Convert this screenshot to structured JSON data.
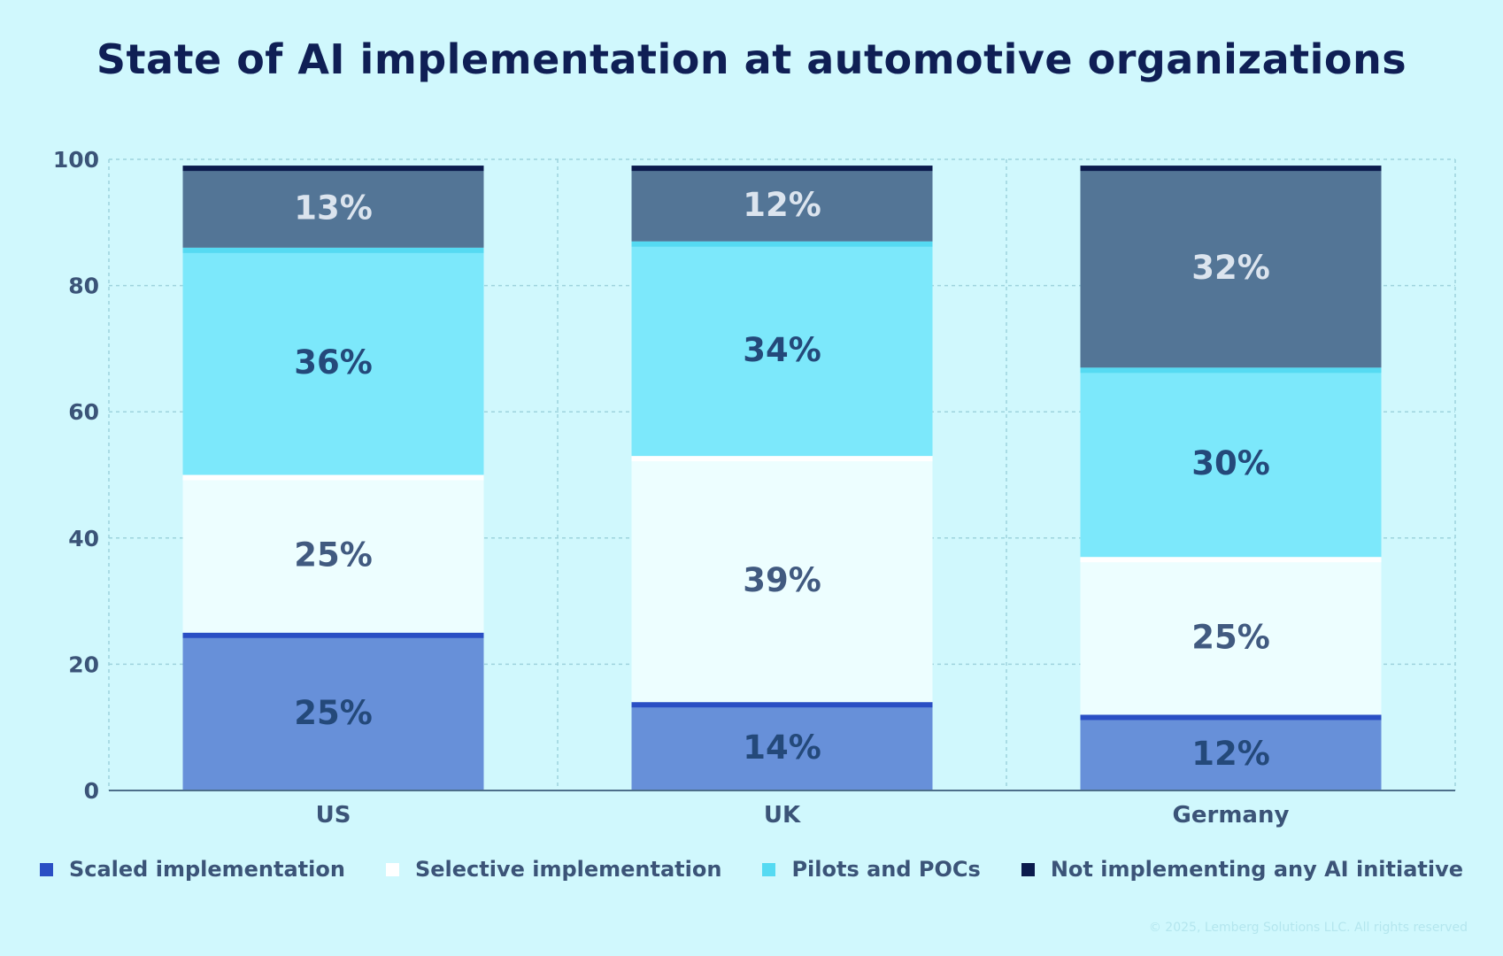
{
  "chart_data": {
    "type": "bar",
    "stacked": true,
    "title": "State of AI implementation at automotive organizations",
    "categories": [
      "US",
      "UK",
      "Germany"
    ],
    "ylim": [
      0,
      100
    ],
    "yticks": [
      0,
      20,
      40,
      60,
      80,
      100
    ],
    "grid": true,
    "legend_position": "bottom",
    "series": [
      {
        "name": "Scaled implementation",
        "values": [
          25,
          14,
          12
        ],
        "labels": [
          "25%",
          "14%",
          "12%"
        ],
        "color": "#6790d9",
        "edge_color": "#2a4fc4",
        "label_color": "#24497a"
      },
      {
        "name": "Selective implementation",
        "values": [
          25,
          39,
          25
        ],
        "labels": [
          "25%",
          "39%",
          "25%"
        ],
        "color": "#edfeff",
        "edge_color": "#ffffff",
        "label_color": "#415a80"
      },
      {
        "name": "Pilots and POCs",
        "values": [
          36,
          34,
          30
        ],
        "labels": [
          "36%",
          "34%",
          "30%"
        ],
        "color": "#7ce8fb",
        "edge_color": "#55daf2",
        "label_color": "#24497a"
      },
      {
        "name": "Not implementing any AI initiative",
        "values": [
          13,
          12,
          32
        ],
        "labels": [
          "13%",
          "12%",
          "32%"
        ],
        "color": "#537596",
        "edge_color": "#0b1b4d",
        "label_color": "#dbe4ee"
      }
    ],
    "legend_colors": [
      "#2a4fc4",
      "#ffffff",
      "#55daf2",
      "#0b1b4d"
    ]
  },
  "footer": {
    "copyright": "© 2025, Lemberg Solutions LLC. All rights reserved"
  }
}
